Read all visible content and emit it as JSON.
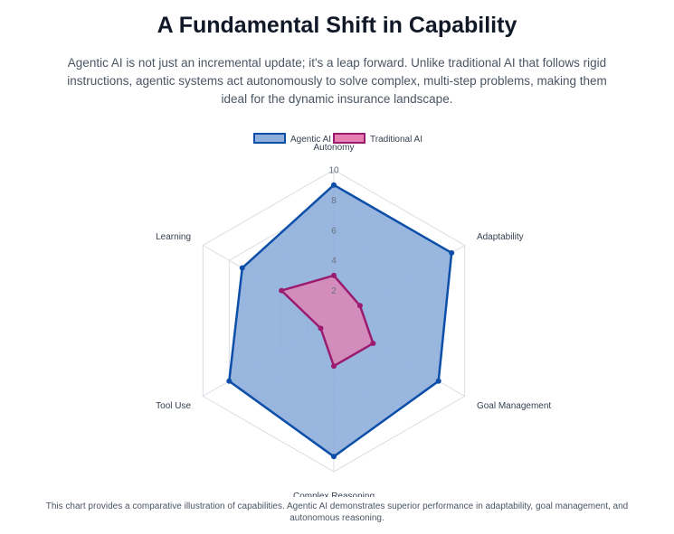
{
  "page": {
    "title": "A Fundamental Shift in Capability",
    "subtitle": "Agentic AI is not just an incremental update; it's a leap forward. Unlike traditional AI that follows rigid instructions, agentic systems act autonomously to solve complex, multi-step problems, making them ideal for the dynamic insurance landscape.",
    "caption": "This chart provides a comparative illustration of capabilities. Agentic AI demonstrates superior performance in adaptability, goal management, and autonomous reasoning."
  },
  "chart_data": {
    "type": "radar",
    "categories": [
      "Autonomy",
      "Adaptability",
      "Goal Management",
      "Complex Reasoning",
      "Tool Use",
      "Learning"
    ],
    "rlim": [
      0,
      10
    ],
    "ticks": [
      2,
      4,
      6,
      8,
      10
    ],
    "legend_position": "top",
    "series": [
      {
        "name": "Agentic AI",
        "values": [
          9,
          9,
          8,
          9,
          8,
          7
        ],
        "stroke": "#0d4fa8",
        "fill": "#8eaedc"
      },
      {
        "name": "Traditional AI",
        "values": [
          3,
          2,
          3,
          3,
          1,
          4
        ],
        "stroke": "#9b1c6f",
        "fill": "#e77fb0"
      }
    ],
    "grid": true
  }
}
